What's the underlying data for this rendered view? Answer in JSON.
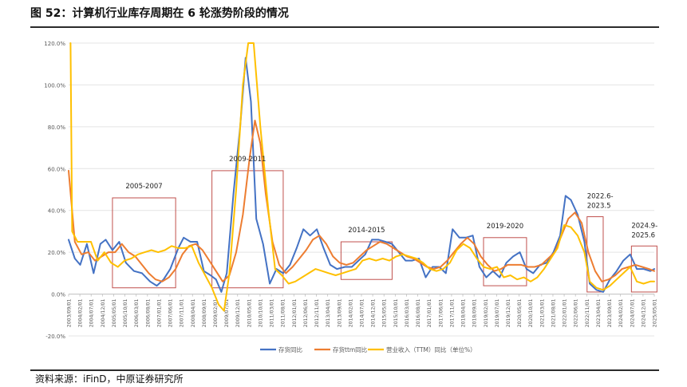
{
  "figure": {
    "title": "图 52：计算机行业库存周期在 6 轮涨势阶段的情况",
    "source": "资料来源：iFinD，中原证券研究所"
  },
  "chart_data": {
    "type": "line",
    "x_ticks": [
      "2003/09/01",
      "2004/02/01",
      "2004/07/01",
      "2004/12/01",
      "2005/05/01",
      "2005/10/01",
      "2006/03/01",
      "2006/08/01",
      "2007/01/01",
      "2007/06/01",
      "2007/11/01",
      "2008/04/01",
      "2008/09/01",
      "2009/02/01",
      "2009/07/01",
      "2009/12/01",
      "2010/05/01",
      "2010/10/01",
      "2011/03/01",
      "2011/08/01",
      "2012/01/01",
      "2012/06/01",
      "2012/11/01",
      "2013/04/01",
      "2013/09/01",
      "2014/02/01",
      "2014/07/01",
      "2014/12/01",
      "2015/05/01",
      "2015/10/01",
      "2016/03/01",
      "2016/08/01",
      "2017/01/01",
      "2017/06/01",
      "2017/11/01",
      "2018/04/01",
      "2018/09/01",
      "2019/02/01",
      "2019/07/01",
      "2019/12/01",
      "2020/05/01",
      "2020/10/01",
      "2021/03/01",
      "2021/08/01",
      "2022/01/01",
      "2022/06/01",
      "2022/11/01",
      "2023/04/01",
      "2023/09/01",
      "2024/02/01",
      "2024/07/01",
      "2024/12/01",
      "2025/05/01"
    ],
    "y_ticks": [
      "120.0%",
      "100.0%",
      "80.0%",
      "60.0%",
      "40.0%",
      "20.0%",
      "0.0%",
      "-20.0%"
    ],
    "ylim": [
      -20,
      120
    ],
    "y_unit": "%",
    "grid": "horizontal",
    "legend_position": "bottom",
    "series": [
      {
        "name": "存货同比",
        "color": "#4472C4",
        "values": [
          [
            2003.67,
            26
          ],
          [
            2003.9,
            17
          ],
          [
            2004.1,
            14
          ],
          [
            2004.35,
            24
          ],
          [
            2004.6,
            10
          ],
          [
            2004.85,
            24
          ],
          [
            2005.05,
            26
          ],
          [
            2005.3,
            21
          ],
          [
            2005.55,
            25
          ],
          [
            2005.8,
            15
          ],
          [
            2006.1,
            11
          ],
          [
            2006.4,
            10
          ],
          [
            2006.7,
            6
          ],
          [
            2006.95,
            4
          ],
          [
            2007.2,
            7
          ],
          [
            2007.45,
            12
          ],
          [
            2007.75,
            22
          ],
          [
            2007.95,
            27
          ],
          [
            2008.2,
            25
          ],
          [
            2008.45,
            25
          ],
          [
            2008.7,
            11
          ],
          [
            2008.95,
            9
          ],
          [
            2009.15,
            7
          ],
          [
            2009.35,
            1
          ],
          [
            2009.55,
            10
          ],
          [
            2009.8,
            48
          ],
          [
            2010.05,
            80
          ],
          [
            2010.25,
            113
          ],
          [
            2010.45,
            92
          ],
          [
            2010.65,
            36
          ],
          [
            2010.9,
            24
          ],
          [
            2011.15,
            5
          ],
          [
            2011.4,
            12
          ],
          [
            2011.65,
            10
          ],
          [
            2011.9,
            14
          ],
          [
            2012.15,
            22
          ],
          [
            2012.4,
            31
          ],
          [
            2012.65,
            28
          ],
          [
            2012.9,
            31
          ],
          [
            2013.15,
            22
          ],
          [
            2013.4,
            14
          ],
          [
            2013.65,
            12
          ],
          [
            2013.95,
            13
          ],
          [
            2014.2,
            13
          ],
          [
            2014.45,
            16
          ],
          [
            2014.7,
            19
          ],
          [
            2014.95,
            26
          ],
          [
            2015.2,
            26
          ],
          [
            2015.45,
            25
          ],
          [
            2015.7,
            24
          ],
          [
            2015.95,
            20
          ],
          [
            2016.2,
            16
          ],
          [
            2016.45,
            16
          ],
          [
            2016.7,
            17
          ],
          [
            2016.95,
            8
          ],
          [
            2017.2,
            13
          ],
          [
            2017.45,
            13
          ],
          [
            2017.7,
            10
          ],
          [
            2017.95,
            31
          ],
          [
            2018.2,
            27
          ],
          [
            2018.45,
            27
          ],
          [
            2018.7,
            28
          ],
          [
            2018.95,
            13
          ],
          [
            2019.2,
            8
          ],
          [
            2019.45,
            11
          ],
          [
            2019.7,
            8
          ],
          [
            2019.95,
            15
          ],
          [
            2020.2,
            18
          ],
          [
            2020.45,
            20
          ],
          [
            2020.7,
            12
          ],
          [
            2020.95,
            10
          ],
          [
            2021.2,
            14
          ],
          [
            2021.45,
            15
          ],
          [
            2021.7,
            20
          ],
          [
            2021.95,
            28
          ],
          [
            2022.15,
            47
          ],
          [
            2022.35,
            45
          ],
          [
            2022.6,
            38
          ],
          [
            2022.85,
            25
          ],
          [
            2023.05,
            5
          ],
          [
            2023.3,
            2
          ],
          [
            2023.55,
            1
          ],
          [
            2023.8,
            7
          ],
          [
            2024.05,
            11
          ],
          [
            2024.3,
            16
          ],
          [
            2024.55,
            19
          ],
          [
            2024.8,
            12
          ],
          [
            2025.05,
            12
          ],
          [
            2025.3,
            11
          ],
          [
            2025.45,
            12
          ]
        ]
      },
      {
        "name": "存货ttm同比",
        "color": "#ED7D31",
        "values": [
          [
            2003.67,
            59
          ],
          [
            2003.9,
            25
          ],
          [
            2004.15,
            19
          ],
          [
            2004.4,
            20
          ],
          [
            2004.65,
            16
          ],
          [
            2004.9,
            18
          ],
          [
            2005.15,
            20
          ],
          [
            2005.4,
            20
          ],
          [
            2005.65,
            24
          ],
          [
            2005.9,
            20
          ],
          [
            2006.15,
            18
          ],
          [
            2006.4,
            14
          ],
          [
            2006.65,
            10
          ],
          [
            2006.9,
            7
          ],
          [
            2007.15,
            6
          ],
          [
            2007.4,
            8
          ],
          [
            2007.65,
            12
          ],
          [
            2007.9,
            19
          ],
          [
            2008.15,
            23
          ],
          [
            2008.4,
            24
          ],
          [
            2008.65,
            21
          ],
          [
            2008.9,
            16
          ],
          [
            2009.15,
            11
          ],
          [
            2009.4,
            6
          ],
          [
            2009.65,
            9
          ],
          [
            2009.9,
            20
          ],
          [
            2010.15,
            38
          ],
          [
            2010.4,
            65
          ],
          [
            2010.6,
            83
          ],
          [
            2010.8,
            72
          ],
          [
            2011.0,
            48
          ],
          [
            2011.25,
            25
          ],
          [
            2011.5,
            14
          ],
          [
            2011.75,
            10
          ],
          [
            2012.0,
            13
          ],
          [
            2012.25,
            17
          ],
          [
            2012.5,
            21
          ],
          [
            2012.75,
            26
          ],
          [
            2013.0,
            28
          ],
          [
            2013.25,
            24
          ],
          [
            2013.5,
            18
          ],
          [
            2013.75,
            15
          ],
          [
            2014.0,
            14
          ],
          [
            2014.25,
            15
          ],
          [
            2014.5,
            18
          ],
          [
            2014.75,
            21
          ],
          [
            2015.0,
            23
          ],
          [
            2015.25,
            25
          ],
          [
            2015.5,
            24
          ],
          [
            2015.75,
            22
          ],
          [
            2016.0,
            20
          ],
          [
            2016.25,
            18
          ],
          [
            2016.5,
            17
          ],
          [
            2016.75,
            15
          ],
          [
            2017.0,
            13
          ],
          [
            2017.25,
            12
          ],
          [
            2017.5,
            13
          ],
          [
            2017.75,
            16
          ],
          [
            2018.0,
            20
          ],
          [
            2018.25,
            24
          ],
          [
            2018.5,
            27
          ],
          [
            2018.75,
            24
          ],
          [
            2019.0,
            18
          ],
          [
            2019.25,
            14
          ],
          [
            2019.5,
            11
          ],
          [
            2019.75,
            12
          ],
          [
            2020.0,
            14
          ],
          [
            2020.25,
            14
          ],
          [
            2020.5,
            14
          ],
          [
            2020.75,
            13
          ],
          [
            2021.0,
            13
          ],
          [
            2021.25,
            14
          ],
          [
            2021.5,
            17
          ],
          [
            2021.75,
            20
          ],
          [
            2022.0,
            28
          ],
          [
            2022.25,
            36
          ],
          [
            2022.5,
            39
          ],
          [
            2022.75,
            34
          ],
          [
            2023.0,
            20
          ],
          [
            2023.25,
            11
          ],
          [
            2023.5,
            6
          ],
          [
            2023.75,
            7
          ],
          [
            2024.0,
            9
          ],
          [
            2024.25,
            12
          ],
          [
            2024.5,
            13
          ],
          [
            2024.75,
            14
          ],
          [
            2025.0,
            13
          ],
          [
            2025.25,
            12
          ],
          [
            2025.45,
            11
          ]
        ]
      },
      {
        "name": "营业收入（TTM）同比（单位%）",
        "color": "#FFC000",
        "values": [
          [
            2003.74,
            120
          ],
          [
            2003.8,
            30
          ],
          [
            2004.0,
            25
          ],
          [
            2004.25,
            25
          ],
          [
            2004.5,
            25
          ],
          [
            2004.75,
            16
          ],
          [
            2005.0,
            20
          ],
          [
            2005.25,
            15
          ],
          [
            2005.5,
            13
          ],
          [
            2005.75,
            16
          ],
          [
            2006.0,
            17
          ],
          [
            2006.25,
            19
          ],
          [
            2006.5,
            20
          ],
          [
            2006.75,
            21
          ],
          [
            2007.0,
            20
          ],
          [
            2007.25,
            21
          ],
          [
            2007.5,
            23
          ],
          [
            2007.75,
            22
          ],
          [
            2008.0,
            22
          ],
          [
            2008.25,
            23
          ],
          [
            2008.5,
            15
          ],
          [
            2008.75,
            9
          ],
          [
            2009.0,
            3
          ],
          [
            2009.25,
            -5
          ],
          [
            2009.45,
            -8
          ],
          [
            2009.65,
            10
          ],
          [
            2009.9,
            50
          ],
          [
            2010.15,
            100
          ],
          [
            2010.35,
            120
          ],
          [
            2010.55,
            120
          ],
          [
            2010.8,
            80
          ],
          [
            2011.1,
            40
          ],
          [
            2011.35,
            12
          ],
          [
            2011.6,
            9
          ],
          [
            2011.85,
            5
          ],
          [
            2012.1,
            6
          ],
          [
            2012.35,
            8
          ],
          [
            2012.6,
            10
          ],
          [
            2012.85,
            12
          ],
          [
            2013.1,
            11
          ],
          [
            2013.35,
            10
          ],
          [
            2013.6,
            9
          ],
          [
            2013.85,
            10
          ],
          [
            2014.1,
            11
          ],
          [
            2014.35,
            12
          ],
          [
            2014.6,
            16
          ],
          [
            2014.85,
            17
          ],
          [
            2015.1,
            16
          ],
          [
            2015.35,
            17
          ],
          [
            2015.6,
            16
          ],
          [
            2015.85,
            18
          ],
          [
            2016.1,
            19
          ],
          [
            2016.35,
            18
          ],
          [
            2016.6,
            17
          ],
          [
            2016.85,
            15
          ],
          [
            2017.1,
            12
          ],
          [
            2017.35,
            11
          ],
          [
            2017.6,
            12
          ],
          [
            2017.85,
            15
          ],
          [
            2018.1,
            21
          ],
          [
            2018.35,
            24
          ],
          [
            2018.6,
            22
          ],
          [
            2018.85,
            17
          ],
          [
            2019.1,
            13
          ],
          [
            2019.35,
            12
          ],
          [
            2019.6,
            13
          ],
          [
            2019.85,
            8
          ],
          [
            2020.1,
            9
          ],
          [
            2020.35,
            7
          ],
          [
            2020.6,
            8
          ],
          [
            2020.85,
            6
          ],
          [
            2021.1,
            8
          ],
          [
            2021.35,
            12
          ],
          [
            2021.6,
            17
          ],
          [
            2021.85,
            22
          ],
          [
            2022.1,
            33
          ],
          [
            2022.35,
            32
          ],
          [
            2022.6,
            28
          ],
          [
            2022.85,
            20
          ],
          [
            2023.05,
            6
          ],
          [
            2023.3,
            3
          ],
          [
            2023.55,
            2
          ],
          [
            2023.8,
            4
          ],
          [
            2024.05,
            7
          ],
          [
            2024.3,
            10
          ],
          [
            2024.55,
            13
          ],
          [
            2024.8,
            6
          ],
          [
            2025.05,
            5
          ],
          [
            2025.3,
            6
          ],
          [
            2025.45,
            6
          ]
        ]
      }
    ],
    "annotations": [
      {
        "label": "2005-2007",
        "box": {
          "x": [
            2005.3,
            2007.65
          ],
          "y": [
            3,
            46
          ]
        }
      },
      {
        "label": "2009-2011",
        "box": {
          "x": [
            2009.0,
            2011.65
          ],
          "y": [
            3,
            59
          ]
        }
      },
      {
        "label": "2014-2015",
        "box": {
          "x": [
            2013.8,
            2015.7
          ],
          "y": [
            7,
            25
          ]
        }
      },
      {
        "label": "2019-2020",
        "box": {
          "x": [
            2019.1,
            2020.7
          ],
          "y": [
            4,
            27
          ]
        }
      },
      {
        "label": "2022.6-2023.5",
        "box": {
          "x": [
            2022.95,
            2023.55
          ],
          "y": [
            1,
            37
          ]
        }
      },
      {
        "label": "2024.9-2025.6",
        "box": {
          "x": [
            2024.6,
            2025.55
          ],
          "y": [
            1,
            23
          ]
        }
      }
    ]
  }
}
